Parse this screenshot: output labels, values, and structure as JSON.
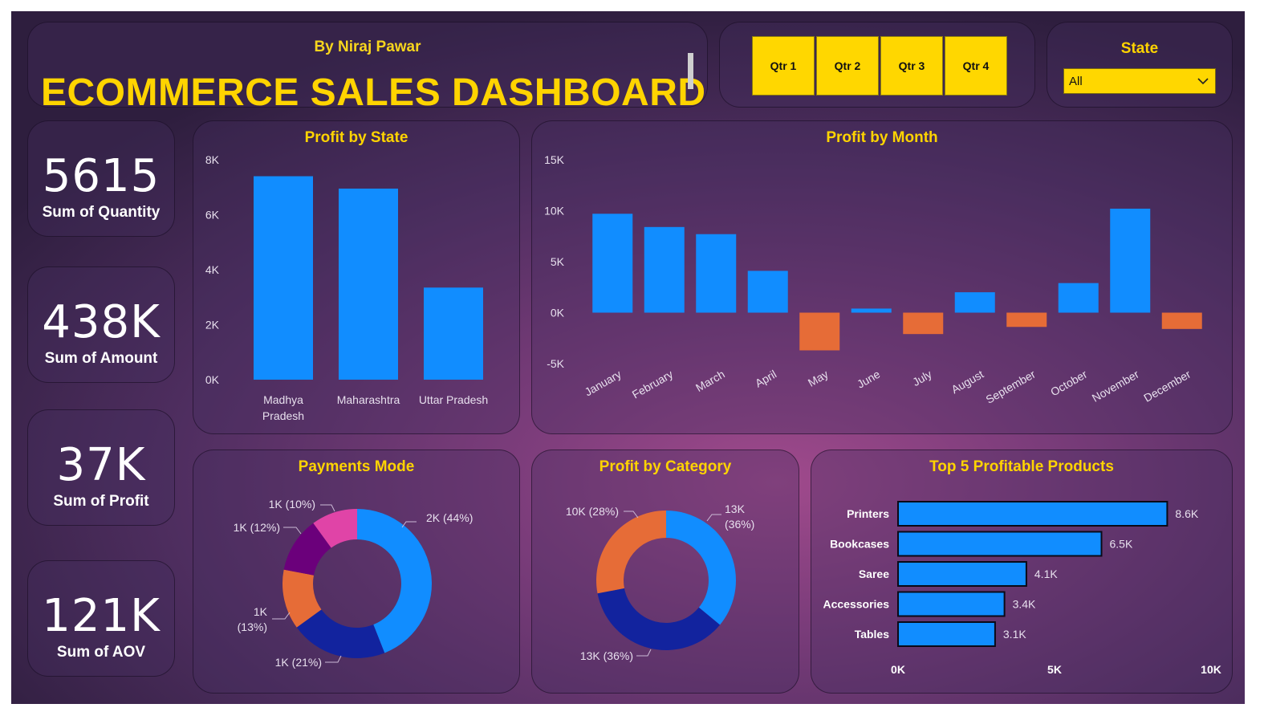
{
  "header": {
    "byline": "By Niraj Pawar",
    "title": "ECOMMERCE SALES DASHBOARD"
  },
  "quarters": [
    "Qtr 1",
    "Qtr 2",
    "Qtr 3",
    "Qtr 4"
  ],
  "state_filter": {
    "label": "State",
    "selected": "All",
    "icon": "chevron-down-icon"
  },
  "kpis": [
    {
      "value": "5615",
      "label": "Sum of Quantity"
    },
    {
      "value": "438K",
      "label": "Sum of Amount"
    },
    {
      "value": "37K",
      "label": "Sum of Profit"
    },
    {
      "value": "121K",
      "label": "Sum of AOV"
    }
  ],
  "colors": {
    "accent_yellow": "#ffd400",
    "bar_blue": "#118dff",
    "negative_orange": "#e66c37",
    "navy": "#12239e",
    "purple": "#6b007b",
    "pink": "#e044a7"
  },
  "chart_data": [
    {
      "type": "bar",
      "title": "Profit by State",
      "categories": [
        "Madhya Pradesh",
        "Maharashtra",
        "Uttar Pradesh"
      ],
      "values": [
        7400,
        6950,
        3350
      ],
      "ylim": [
        0,
        8000
      ],
      "yticks": [
        0,
        2000,
        4000,
        6000,
        8000
      ],
      "ytick_labels": [
        "0K",
        "2K",
        "4K",
        "6K",
        "8K"
      ],
      "grid": false
    },
    {
      "type": "bar",
      "title": "Profit by Month",
      "categories": [
        "January",
        "February",
        "March",
        "April",
        "May",
        "June",
        "July",
        "August",
        "September",
        "October",
        "November",
        "December"
      ],
      "values": [
        9700,
        8400,
        7700,
        4100,
        -3700,
        400,
        -2100,
        2000,
        -1400,
        2900,
        10200,
        -1600
      ],
      "ylim": [
        -5000,
        15000
      ],
      "yticks": [
        -5000,
        0,
        5000,
        10000,
        15000
      ],
      "ytick_labels": [
        "-5K",
        "0K",
        "5K",
        "10K",
        "15K"
      ],
      "grid": false
    },
    {
      "type": "pie",
      "title": "Payments Mode",
      "donut": true,
      "values": [
        44,
        21,
        13,
        12,
        10
      ],
      "labels": [
        "2K (44%)",
        "1K (21%)",
        "1K (13%)",
        "1K (12%)",
        "1K (10%)"
      ],
      "colors": [
        "#118dff",
        "#12239e",
        "#e66c37",
        "#6b007b",
        "#e044a7"
      ]
    },
    {
      "type": "pie",
      "title": "Profit by Category",
      "donut": true,
      "values": [
        36,
        36,
        28
      ],
      "labels": [
        "13K (36%)",
        "13K (36%)",
        "10K (28%)"
      ],
      "colors": [
        "#118dff",
        "#12239e",
        "#e66c37"
      ]
    },
    {
      "type": "bar",
      "orientation": "horizontal",
      "title": "Top 5 Profitable Products",
      "categories": [
        "Printers",
        "Bookcases",
        "Saree",
        "Accessories",
        "Tables"
      ],
      "values": [
        8600,
        6500,
        4100,
        3400,
        3100
      ],
      "data_labels": [
        "8.6K",
        "6.5K",
        "4.1K",
        "3.4K",
        "3.1K"
      ],
      "xlim": [
        0,
        10000
      ],
      "xticks": [
        0,
        5000,
        10000
      ],
      "xtick_labels": [
        "0K",
        "5K",
        "10K"
      ],
      "grid": false
    }
  ]
}
